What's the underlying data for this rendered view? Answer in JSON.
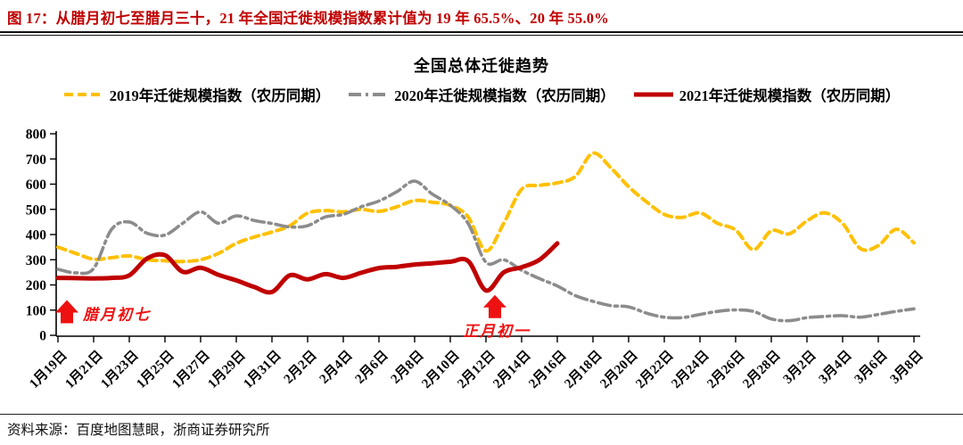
{
  "header": {
    "title": "图 17：从腊月初七至腊月三十，21 年全国迁徙规模指数累计值为 19 年 65.5%、20 年 55.0%"
  },
  "chart": {
    "title": "全国总体迁徙趋势"
  },
  "footer": {
    "source": "资料来源：百度地图慧眼，浙商证券研究所"
  },
  "colors": {
    "title_red": "#c00000",
    "annotation_red": "#ed1111",
    "series_2019": "#ffc000",
    "series_2020": "#8c8c8c",
    "series_2021": "#c00000",
    "axis_black": "#000000"
  },
  "chart_data": {
    "type": "line",
    "title": "全国总体迁徙趋势",
    "xlabel": "",
    "ylabel": "",
    "ylim": [
      0,
      800
    ],
    "y_ticks": [
      "0",
      "100",
      "200",
      "300",
      "400",
      "500",
      "600",
      "700",
      "800"
    ],
    "grid": false,
    "legend_position": "top",
    "x_tick_labels": [
      "1月19日",
      "1月21日",
      "1月23日",
      "1月25日",
      "1月27日",
      "1月29日",
      "1月31日",
      "2月2日",
      "2月4日",
      "2月6日",
      "2月8日",
      "2月10日",
      "2月12日",
      "2月14日",
      "2月16日",
      "2月18日",
      "2月20日",
      "2月22日",
      "2月24日",
      "2月26日",
      "2月28日",
      "3月2日",
      "3月4日",
      "3月6日",
      "3月8日"
    ],
    "x_days_total": 49,
    "series": [
      {
        "name": "2019年迁徙规模指数（农历同期）",
        "color": "#ffc000",
        "style": "dashed",
        "start_day": 0,
        "values": [
          350,
          325,
          302,
          308,
          315,
          300,
          296,
          293,
          300,
          325,
          365,
          390,
          410,
          435,
          485,
          495,
          490,
          500,
          492,
          510,
          535,
          528,
          516,
          470,
          335,
          445,
          580,
          595,
          605,
          630,
          723,
          665,
          590,
          530,
          480,
          468,
          486,
          444,
          418,
          340,
          415,
          403,
          454,
          486,
          444,
          344,
          356,
          421,
          367
        ]
      },
      {
        "name": "2020年迁徙规模指数（农历同期）",
        "color": "#8c8c8c",
        "style": "dashdot",
        "start_day": 0,
        "values": [
          262,
          248,
          265,
          420,
          450,
          405,
          398,
          445,
          490,
          445,
          474,
          456,
          444,
          430,
          435,
          470,
          480,
          510,
          533,
          570,
          612,
          560,
          516,
          444,
          290,
          300,
          258,
          225,
          196,
          158,
          135,
          118,
          113,
          88,
          72,
          70,
          83,
          95,
          101,
          95,
          65,
          58,
          70,
          75,
          78,
          72,
          83,
          95,
          105
        ]
      },
      {
        "name": "2021年迁徙规模指数（农历同期）",
        "color": "#c00000",
        "style": "solid",
        "start_day": 0,
        "values": [
          228,
          227,
          226,
          228,
          238,
          305,
          318,
          252,
          268,
          240,
          218,
          192,
          172,
          238,
          222,
          243,
          228,
          248,
          267,
          272,
          281,
          286,
          292,
          295,
          178,
          250,
          270,
          300,
          365
        ]
      }
    ],
    "annotations": [
      {
        "label": "腊月初七",
        "day": 0.5,
        "tip_value": 140,
        "text_side": "right"
      },
      {
        "label": "正月初一",
        "day": 24.5,
        "tip_value": 160,
        "text_side": "below"
      }
    ]
  }
}
